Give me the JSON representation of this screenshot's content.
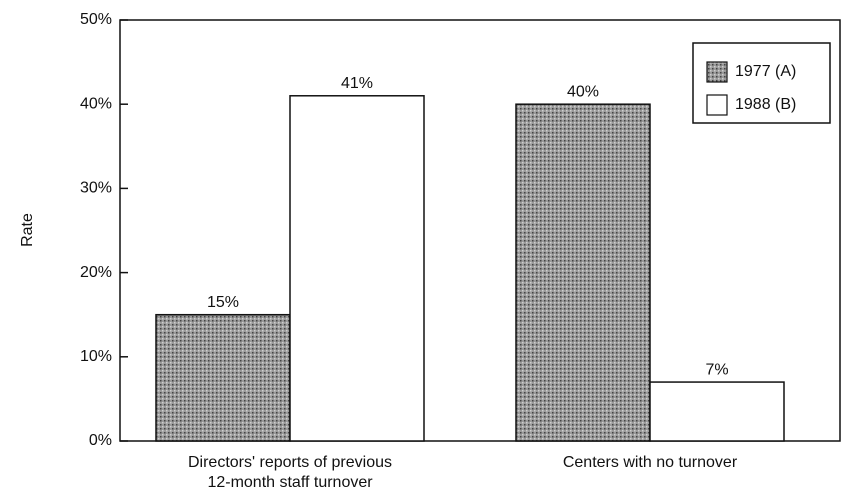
{
  "chart_data": {
    "type": "bar",
    "ylabel": "Rate",
    "categories": [
      [
        "Directors' reports of previous",
        "12-month staff turnover"
      ],
      [
        "Centers with no turnover"
      ]
    ],
    "series": [
      {
        "name": "1977 (A)",
        "color": "#8a8a8a",
        "values": [
          15,
          40
        ],
        "value_labels": [
          "15%",
          "40%"
        ]
      },
      {
        "name": "1988 (B)",
        "color": "#ffffff",
        "values": [
          41,
          7
        ],
        "value_labels": [
          "41%",
          "7%"
        ]
      }
    ],
    "ylim": [
      0,
      50
    ],
    "yticks": [
      {
        "value": 0,
        "label": "0%"
      },
      {
        "value": 10,
        "label": "10%"
      },
      {
        "value": 20,
        "label": "20%"
      },
      {
        "value": 30,
        "label": "30%"
      },
      {
        "value": 40,
        "label": "40%"
      },
      {
        "value": 50,
        "label": "50%"
      }
    ],
    "legend": "upper right"
  }
}
